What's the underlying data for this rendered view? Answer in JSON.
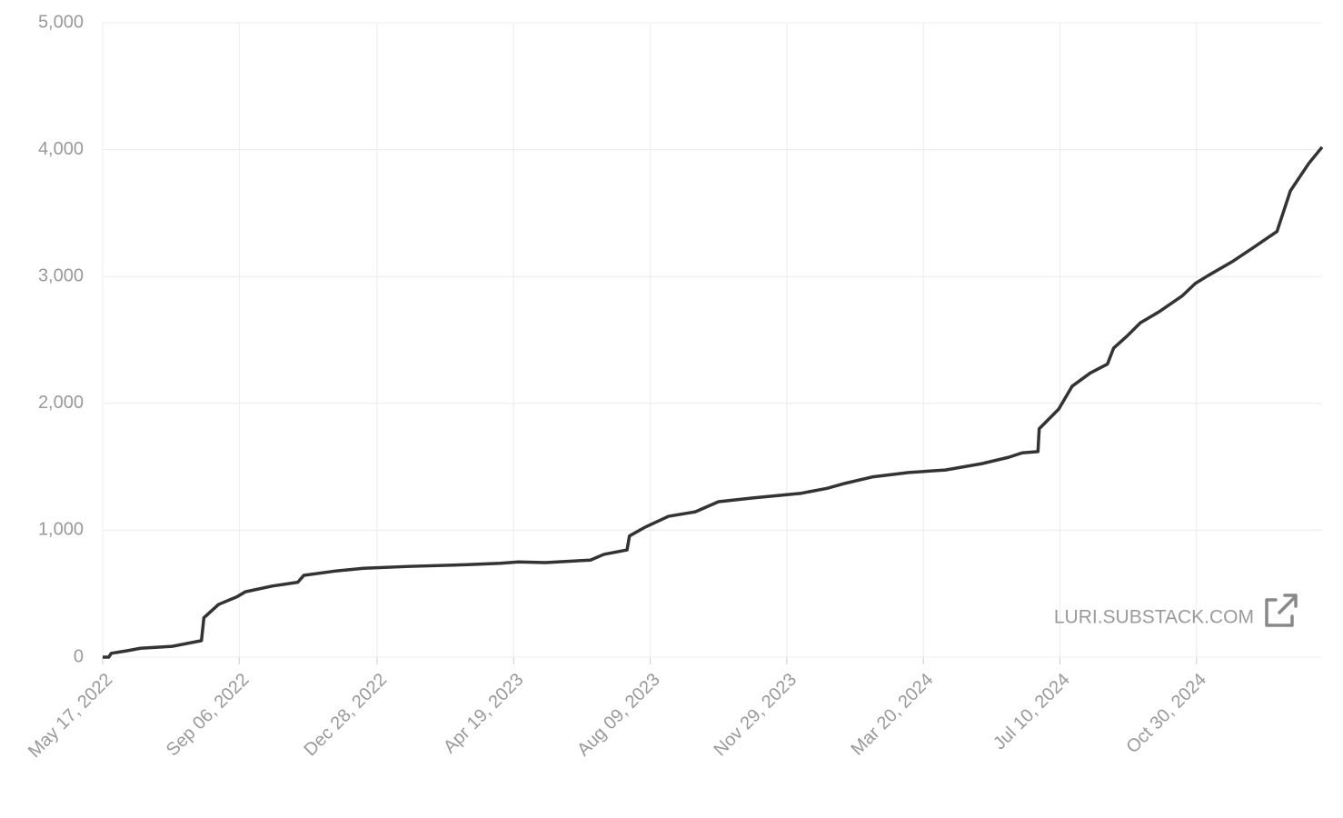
{
  "chart_data": {
    "type": "line",
    "x": [
      "2022-05-17",
      "2022-05-22",
      "2022-05-24",
      "2022-06-06",
      "2022-06-17",
      "2022-07-13",
      "2022-07-21",
      "2022-08-06",
      "2022-08-08",
      "2022-08-20",
      "2022-09-04",
      "2022-09-11",
      "2022-10-03",
      "2022-10-24",
      "2022-10-29",
      "2022-11-25",
      "2022-12-17",
      "2023-01-23",
      "2023-03-01",
      "2023-04-08",
      "2023-04-23",
      "2023-05-15",
      "2023-06-21",
      "2023-07-02",
      "2023-07-21",
      "2023-07-23",
      "2023-08-05",
      "2023-08-24",
      "2023-09-15",
      "2023-10-04",
      "2023-11-02",
      "2023-12-10",
      "2024-01-01",
      "2024-01-16",
      "2024-02-07",
      "2024-03-08",
      "2024-04-07",
      "2024-05-07",
      "2024-05-29",
      "2024-06-09",
      "2024-06-22",
      "2024-06-23",
      "2024-07-09",
      "2024-07-20",
      "2024-08-04",
      "2024-08-18",
      "2024-08-23",
      "2024-09-03",
      "2024-09-14",
      "2024-09-29",
      "2024-10-18",
      "2024-10-29",
      "2024-11-09",
      "2024-11-28",
      "2024-12-16",
      "2025-01-04",
      "2025-01-15",
      "2025-01-30",
      "2025-02-10"
    ],
    "series": [
      {
        "color": "#333333",
        "values": [
          0,
          0,
          30,
          50,
          70,
          85,
          100,
          130,
          310,
          415,
          475,
          515,
          560,
          590,
          645,
          680,
          700,
          715,
          725,
          740,
          750,
          745,
          765,
          810,
          845,
          955,
          1025,
          1110,
          1145,
          1225,
          1255,
          1290,
          1330,
          1370,
          1420,
          1455,
          1475,
          1525,
          1575,
          1610,
          1620,
          1800,
          1955,
          2135,
          2240,
          2310,
          2435,
          2530,
          2635,
          2720,
          2845,
          2945,
          3010,
          3115,
          3230,
          3355,
          3675,
          3890,
          4020
        ]
      }
    ],
    "xlim": [
      "2022-05-17",
      "2025-02-10"
    ],
    "xticks": [
      {
        "value": "2022-05-17",
        "label": "May 17, 2022"
      },
      {
        "value": "2022-09-06",
        "label": "Sep 06, 2022"
      },
      {
        "value": "2022-12-28",
        "label": "Dec 28, 2022"
      },
      {
        "value": "2023-04-19",
        "label": "Apr 19, 2023"
      },
      {
        "value": "2023-08-09",
        "label": "Aug 09, 2023"
      },
      {
        "value": "2023-11-29",
        "label": "Nov 29, 2023"
      },
      {
        "value": "2024-03-20",
        "label": "Mar 20, 2024"
      },
      {
        "value": "2024-07-10",
        "label": "Jul 10, 2024"
      },
      {
        "value": "2024-10-30",
        "label": "Oct 30, 2024"
      }
    ],
    "ylim": [
      0,
      5000
    ],
    "yticks": [
      0,
      {
        "value": 1000,
        "label": "1,000"
      },
      {
        "value": 2000,
        "label": "2,000"
      },
      {
        "value": 3000,
        "label": "3,000"
      },
      {
        "value": 4000,
        "label": "4,000"
      },
      {
        "value": 5000,
        "label": "5,000"
      }
    ],
    "grid": true,
    "annotations": [
      "LURI.SUBSTACK.COM"
    ]
  }
}
